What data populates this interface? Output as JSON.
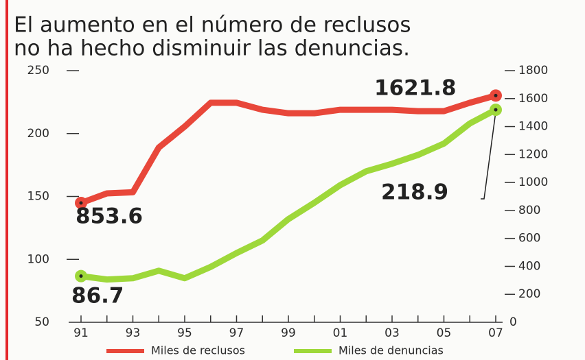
{
  "chart_data": {
    "type": "line",
    "title": [
      "El aumento en el número de reclusos",
      "no ha hecho disminuir las denuncias."
    ],
    "categories": [
      "91",
      null,
      "93",
      null,
      "95",
      null,
      "97",
      null,
      "99",
      null,
      "01",
      null,
      "03",
      null,
      "05",
      null,
      "07"
    ],
    "series": [
      {
        "name": "Miles de reclusos",
        "color": "#e8473a",
        "axis": "y2",
        "values": [
          853.6,
          922,
          930,
          1250,
          1400,
          1570,
          1570,
          1520,
          1495,
          1495,
          1520,
          1520,
          1520,
          1510,
          1510,
          1570,
          1621.8
        ]
      },
      {
        "name": "Miles de denuncias",
        "color": "#9ed83a",
        "axis": "y",
        "values": [
          86.7,
          84,
          85,
          91,
          85,
          94,
          105,
          115,
          132,
          145,
          159,
          170,
          176,
          183,
          192,
          208,
          218.9
        ]
      }
    ],
    "ylim": [
      50,
      250
    ],
    "yticks": [
      50,
      100,
      150,
      200,
      250
    ],
    "y2lim": [
      0,
      1800
    ],
    "y2ticks": [
      0,
      200,
      400,
      600,
      800,
      1000,
      1200,
      1400,
      1600,
      1800
    ],
    "legend": "bottom"
  }
}
